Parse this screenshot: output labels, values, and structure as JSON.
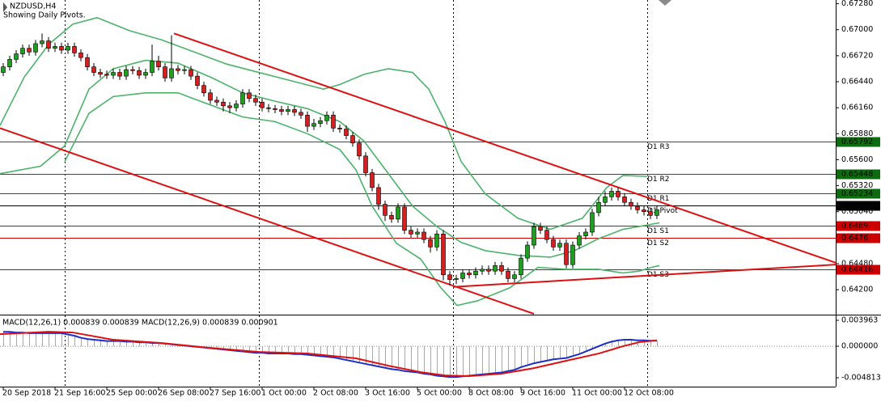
{
  "chart_data": [
    {
      "type": "candlestick",
      "title": "NZDUSD,H4",
      "subtitle": "Showing Daily Pivots.",
      "xlim": [
        -0.5,
        128.625
      ],
      "xticks": [
        {
          "value": 0,
          "label": "20 Sep 2018"
        },
        {
          "value": 8,
          "label": "21 Sep 16:00"
        },
        {
          "value": 16,
          "label": "25 Sep 00:00"
        },
        {
          "value": 24,
          "label": "26 Sep 08:00"
        },
        {
          "value": 32,
          "label": "27 Sep 16:00"
        },
        {
          "value": 40,
          "label": "1 Oct 00:00"
        },
        {
          "value": 48,
          "label": "2 Oct 08:00"
        },
        {
          "value": 56,
          "label": "3 Oct 16:00"
        },
        {
          "value": 64,
          "label": "5 Oct 00:00"
        },
        {
          "value": 72,
          "label": "8 Oct 08:00"
        },
        {
          "value": 80,
          "label": "9 Oct 16:00"
        },
        {
          "value": 88,
          "label": "11 Oct 00:00"
        },
        {
          "value": 96,
          "label": "12 Oct 08:00"
        }
      ],
      "separators": [
        9.5,
        39.5,
        69.5,
        99.5
      ],
      "ylim": [
        0.6394,
        0.6732
      ],
      "yticks": [
        {
          "value": 0.6728,
          "label": "0.67280"
        },
        {
          "value": 0.67,
          "label": "0.67000"
        },
        {
          "value": 0.6672,
          "label": "0.66720"
        },
        {
          "value": 0.6644,
          "label": "0.66440"
        },
        {
          "value": 0.6616,
          "label": "0.66160"
        },
        {
          "value": 0.6588,
          "label": "0.65880"
        },
        {
          "value": 0.656,
          "label": "0.65600"
        },
        {
          "value": 0.6532,
          "label": "0.65320"
        },
        {
          "value": 0.6504,
          "label": "0.65040"
        },
        {
          "value": 0.6448,
          "label": "0.64480"
        },
        {
          "value": 0.642,
          "label": "0.64200"
        }
      ],
      "up_color": "#1f9e1f",
      "down_color": "#d42020",
      "open": [
        0.6654,
        0.666,
        0.6668,
        0.6674,
        0.668,
        0.6676,
        0.6685,
        0.6688,
        0.668,
        0.6682,
        0.6678,
        0.6682,
        0.6675,
        0.667,
        0.666,
        0.6654,
        0.6652,
        0.6651,
        0.6654,
        0.665,
        0.6657,
        0.6656,
        0.6651,
        0.6654,
        0.6666,
        0.666,
        0.6648,
        0.6658,
        0.6656,
        0.6657,
        0.665,
        0.664,
        0.6632,
        0.6624,
        0.6622,
        0.6618,
        0.6616,
        0.662,
        0.6632,
        0.6626,
        0.6622,
        0.6616,
        0.6615,
        0.6614,
        0.6612,
        0.6614,
        0.6611,
        0.6608,
        0.6596,
        0.6599,
        0.6602,
        0.6608,
        0.6594,
        0.6593,
        0.6586,
        0.6578,
        0.6564,
        0.6546,
        0.653,
        0.6512,
        0.65,
        0.6496,
        0.6509,
        0.6484,
        0.648,
        0.6482,
        0.6474,
        0.6466,
        0.648,
        0.6436,
        0.6431,
        0.6432,
        0.6438,
        0.6436,
        0.644,
        0.6442,
        0.644,
        0.6446,
        0.644,
        0.6432,
        0.6436,
        0.6454,
        0.6468,
        0.6488,
        0.6484,
        0.6474,
        0.6466,
        0.647,
        0.6447,
        0.6468,
        0.6478,
        0.6482,
        0.6503,
        0.6514,
        0.652,
        0.6526,
        0.652,
        0.6514,
        0.651,
        0.6506,
        0.6504,
        0.65
      ],
      "high": [
        0.6664,
        0.6672,
        0.6678,
        0.6684,
        0.6684,
        0.6689,
        0.6696,
        0.6692,
        0.6686,
        0.6686,
        0.6686,
        0.6686,
        0.6679,
        0.6674,
        0.6664,
        0.6658,
        0.6656,
        0.6658,
        0.6658,
        0.6661,
        0.6661,
        0.666,
        0.6658,
        0.6684,
        0.6672,
        0.6664,
        0.6694,
        0.6662,
        0.6661,
        0.6661,
        0.6654,
        0.6644,
        0.6636,
        0.6628,
        0.6626,
        0.6622,
        0.6624,
        0.6636,
        0.6636,
        0.663,
        0.6626,
        0.662,
        0.6619,
        0.6618,
        0.6618,
        0.6618,
        0.6615,
        0.6612,
        0.6604,
        0.6606,
        0.6612,
        0.6612,
        0.6598,
        0.6597,
        0.659,
        0.6582,
        0.6568,
        0.655,
        0.6534,
        0.6516,
        0.6504,
        0.6513,
        0.6513,
        0.6488,
        0.6486,
        0.6486,
        0.6478,
        0.6484,
        0.6484,
        0.644,
        0.6436,
        0.6442,
        0.6442,
        0.6444,
        0.6446,
        0.6446,
        0.645,
        0.645,
        0.6444,
        0.644,
        0.6458,
        0.6472,
        0.6492,
        0.6492,
        0.6488,
        0.6478,
        0.6474,
        0.6474,
        0.6472,
        0.6482,
        0.6486,
        0.6507,
        0.652,
        0.6526,
        0.653,
        0.653,
        0.6524,
        0.6518,
        0.6514,
        0.651,
        0.6508,
        0.651
      ],
      "low": [
        0.665,
        0.6656,
        0.6664,
        0.667,
        0.6672,
        0.6672,
        0.6681,
        0.6676,
        0.6676,
        0.6674,
        0.6674,
        0.6671,
        0.6666,
        0.6656,
        0.665,
        0.6648,
        0.6647,
        0.6647,
        0.6646,
        0.6646,
        0.6652,
        0.6647,
        0.6647,
        0.665,
        0.6656,
        0.6644,
        0.6644,
        0.6652,
        0.6652,
        0.6646,
        0.6636,
        0.6628,
        0.662,
        0.6618,
        0.6612,
        0.661,
        0.6612,
        0.6616,
        0.6622,
        0.6618,
        0.6612,
        0.6611,
        0.661,
        0.6608,
        0.6608,
        0.6607,
        0.6604,
        0.659,
        0.6592,
        0.6595,
        0.6598,
        0.659,
        0.6589,
        0.6582,
        0.6574,
        0.656,
        0.6542,
        0.6526,
        0.6506,
        0.6494,
        0.6492,
        0.6492,
        0.648,
        0.6476,
        0.6476,
        0.647,
        0.646,
        0.6462,
        0.643,
        0.6425,
        0.6426,
        0.6428,
        0.6432,
        0.6432,
        0.6436,
        0.6436,
        0.6436,
        0.6436,
        0.6428,
        0.6428,
        0.6432,
        0.645,
        0.6464,
        0.648,
        0.647,
        0.6462,
        0.6462,
        0.6443,
        0.6443,
        0.6464,
        0.6474,
        0.6478,
        0.6499,
        0.651,
        0.6516,
        0.6516,
        0.651,
        0.6506,
        0.6502,
        0.65,
        0.6496,
        0.6496
      ],
      "close": [
        0.666,
        0.6668,
        0.6674,
        0.668,
        0.6676,
        0.6685,
        0.6688,
        0.668,
        0.6682,
        0.6678,
        0.6682,
        0.6675,
        0.667,
        0.666,
        0.6654,
        0.6652,
        0.6651,
        0.6654,
        0.665,
        0.6657,
        0.6656,
        0.6651,
        0.6654,
        0.6666,
        0.666,
        0.6648,
        0.6658,
        0.6656,
        0.6657,
        0.665,
        0.664,
        0.6632,
        0.6624,
        0.6622,
        0.6618,
        0.6616,
        0.662,
        0.6632,
        0.6626,
        0.6622,
        0.6616,
        0.6615,
        0.6614,
        0.6612,
        0.6614,
        0.6611,
        0.6608,
        0.6596,
        0.6599,
        0.6602,
        0.6608,
        0.6594,
        0.6593,
        0.6586,
        0.6578,
        0.6564,
        0.6546,
        0.653,
        0.6512,
        0.65,
        0.6496,
        0.6509,
        0.6484,
        0.648,
        0.6482,
        0.6474,
        0.6466,
        0.648,
        0.6436,
        0.6431,
        0.6432,
        0.6438,
        0.6436,
        0.644,
        0.6442,
        0.644,
        0.6446,
        0.644,
        0.6432,
        0.6436,
        0.6454,
        0.6468,
        0.6488,
        0.6484,
        0.6474,
        0.6466,
        0.647,
        0.6447,
        0.6468,
        0.6478,
        0.6482,
        0.6503,
        0.6514,
        0.652,
        0.6526,
        0.652,
        0.6514,
        0.651,
        0.6506,
        0.6504,
        0.65,
        0.6506
      ],
      "band_color": "#4cb36a",
      "bands": [
        {
          "x": [
            -0.5,
            3.25,
            7,
            10.75,
            14.5,
            19.5,
            24.5,
            29.5,
            34.5,
            39.5,
            44.5,
            49.5,
            52,
            55.75,
            59.5,
            63.25,
            65.75,
            68.25,
            70.75,
            74.5,
            79.5,
            84.5,
            89.5,
            93.25,
            95.75,
            99.5
          ],
          "values": [
            0.6597,
            0.6649,
            0.6684,
            0.6706,
            0.6713,
            0.6699,
            0.6689,
            0.6676,
            0.6663,
            0.6654,
            0.6645,
            0.6636,
            0.6641,
            0.6652,
            0.6658,
            0.6654,
            0.6636,
            0.6601,
            0.6558,
            0.6523,
            0.6497,
            0.6485,
            0.6497,
            0.653,
            0.6543,
            0.6542
          ]
        },
        {
          "x": [
            -0.5,
            5.75,
            9.5,
            13.25,
            17,
            22,
            27,
            32,
            37,
            42,
            47,
            52,
            55.75,
            59.5,
            63.25,
            67,
            70.75,
            74.5,
            79.5,
            84.5,
            88.25,
            92,
            95.75,
            101.375
          ],
          "values": [
            0.6545,
            0.6553,
            0.6575,
            0.6636,
            0.6658,
            0.6667,
            0.6664,
            0.6649,
            0.6632,
            0.6623,
            0.6615,
            0.6601,
            0.658,
            0.6545,
            0.651,
            0.6488,
            0.6471,
            0.6462,
            0.6457,
            0.6455,
            0.6462,
            0.6475,
            0.6485,
            0.6492
          ]
        },
        {
          "x": [
            9.5,
            13.25,
            17,
            22,
            27,
            32,
            37,
            42,
            47,
            52,
            54.5,
            57,
            60.75,
            64.5,
            67.625,
            70.125,
            73.25,
            78.25,
            82.625,
            87,
            92,
            95.75,
            98.25,
            100.125,
            101.375
          ],
          "values": [
            0.6558,
            0.661,
            0.6628,
            0.6632,
            0.6632,
            0.6619,
            0.6606,
            0.6601,
            0.6588,
            0.6571,
            0.6549,
            0.651,
            0.647,
            0.6453,
            0.6422,
            0.6403,
            0.6408,
            0.6422,
            0.6444,
            0.6442,
            0.6442,
            0.6438,
            0.644,
            0.6444,
            0.6446
          ]
        }
      ],
      "trendline_color": "#dd1111",
      "trendlines": [
        {
          "x": [
            26.375,
            128.625
          ],
          "values": [
            0.6696,
            0.6449
          ]
        },
        {
          "x": [
            -0.5,
            82
          ],
          "values": [
            0.6594,
            0.6394
          ]
        },
        {
          "x": [
            69.5,
            128.625
          ],
          "values": [
            0.6423,
            0.6447
          ]
        }
      ],
      "pivots": [
        {
          "label": "D1 R3",
          "value": 0.65792,
          "color": "#0f6b0f"
        },
        {
          "label": "D1 R2",
          "value": 0.65448,
          "color": "#0f6b0f"
        },
        {
          "label": "D1 R1",
          "value": 0.65234,
          "color": "#0f6b0f"
        },
        {
          "label": "D1 Pivot",
          "value": 0.65104,
          "color": "#000000"
        },
        {
          "label": "D1 S1",
          "value": 0.6489,
          "color": "#cc0000"
        },
        {
          "label": "D1 S2",
          "value": 0.6476,
          "color": "#cc0000"
        },
        {
          "label": "D1 S3",
          "value": 0.64416,
          "color": "#cc0000"
        }
      ]
    },
    {
      "type": "macd",
      "title": "MACD(12,26,1) 0.000839 0.000839 MACD(12,26,9) 0.000839 0.000901",
      "ylim": [
        -0.00617,
        0.00458
      ],
      "yticks": [
        {
          "value": 0.003963,
          "label": "0.003963"
        },
        {
          "value": 0,
          "label": "0.000000"
        },
        {
          "value": -0.004813,
          "label": "-0.004813"
        }
      ],
      "histogram_color": "#a8a8a8",
      "series": [
        {
          "color": "#1c2fc8",
          "values": [
            0.0022,
            0.0022,
            0.0021,
            0.0021,
            0.002,
            0.002,
            0.002,
            0.002,
            0.002,
            0.002,
            0.0018,
            0.0016,
            0.0013,
            0.0011,
            0.001,
            0.0009,
            0.0008,
            0.0008,
            0.0008,
            0.0007,
            0.0007,
            0.0006,
            0.0006,
            0.0005,
            0.0005,
            0.0004,
            0.0003,
            0.0002,
            0.0001,
            0.0,
            -0.0001,
            -0.0002,
            -0.0003,
            -0.0004,
            -0.0005,
            -0.0006,
            -0.0007,
            -0.0008,
            -0.0009,
            -0.001,
            -0.001,
            -0.0011,
            -0.0011,
            -0.0011,
            -0.0011,
            -0.0012,
            -0.0012,
            -0.0013,
            -0.0014,
            -0.0015,
            -0.0016,
            -0.0017,
            -0.0019,
            -0.0021,
            -0.0023,
            -0.0025,
            -0.0027,
            -0.0029,
            -0.0031,
            -0.0033,
            -0.0035,
            -0.0036,
            -0.0038,
            -0.0039,
            -0.004,
            -0.0042,
            -0.0043,
            -0.0045,
            -0.0046,
            -0.0047,
            -0.0047,
            -0.0046,
            -0.0045,
            -0.0044,
            -0.0043,
            -0.0042,
            -0.0041,
            -0.004,
            -0.0038,
            -0.0036,
            -0.0032,
            -0.0029,
            -0.0026,
            -0.0024,
            -0.0022,
            -0.002,
            -0.0019,
            -0.0018,
            -0.0015,
            -0.0012,
            -0.0008,
            -0.0004,
            0.0,
            0.0004,
            0.0007,
            0.0009,
            0.001,
            0.001,
            0.0009,
            0.0009,
            0.00085,
            0.000839
          ]
        },
        {
          "color": "#dd1111",
          "x": [
            -0.5,
            7,
            10.75,
            17,
            24.5,
            32,
            39.5,
            47,
            54.5,
            59.5,
            64.5,
            68.25,
            72,
            77,
            82,
            87,
            92,
            95.75,
            98.25,
            101
          ],
          "values": [
            0.00185,
            0.00222,
            0.0021,
            0.00099,
            0.00049,
            -0.00025,
            -0.00087,
            -0.00111,
            -0.00185,
            -0.00297,
            -0.00396,
            -0.00445,
            -0.00457,
            -0.0042,
            -0.00334,
            -0.00222,
            -0.00111,
            0,
            0.00062,
            0.000901
          ]
        }
      ]
    }
  ]
}
